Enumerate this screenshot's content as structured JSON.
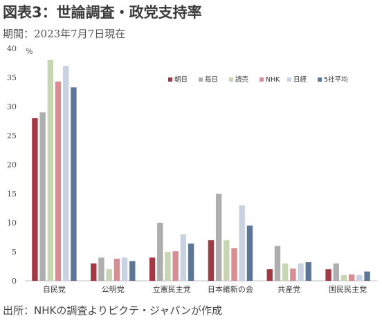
{
  "header": {
    "title": "図表3：世論調査・政党支持率",
    "subtitle": "期間：2023年7月7日現在"
  },
  "footer": {
    "source": "出所：NHKの調査よりピクテ・ジャパンが作成"
  },
  "chart_data": {
    "type": "bar",
    "title": "図表3：世論調査・政党支持率",
    "ylabel": "%",
    "xlabel": "",
    "ylim": [
      0,
      40
    ],
    "yticks": [
      0,
      5,
      10,
      15,
      20,
      25,
      30,
      35,
      40
    ],
    "grid": false,
    "legend_position": "top-right",
    "categories": [
      "自民党",
      "公明党",
      "立憲民主党",
      "日本維新の会",
      "共産党",
      "国民民主党"
    ],
    "series": [
      {
        "name": "朝日",
        "color": "#a23a45",
        "values": [
          28.0,
          3.0,
          4.0,
          7.0,
          2.0,
          2.0
        ]
      },
      {
        "name": "毎日",
        "color": "#aeaeae",
        "values": [
          29.0,
          4.0,
          10.0,
          15.0,
          6.0,
          3.0
        ]
      },
      {
        "name": "読売",
        "color": "#c8d5b3",
        "values": [
          38.0,
          2.0,
          5.0,
          7.0,
          3.0,
          1.0
        ]
      },
      {
        "name": "NHK",
        "color": "#d88d93",
        "values": [
          34.3,
          3.8,
          5.1,
          5.6,
          2.1,
          1.1
        ]
      },
      {
        "name": "日経",
        "color": "#c9d2e1",
        "values": [
          37.0,
          4.0,
          8.0,
          13.0,
          3.0,
          1.0
        ]
      },
      {
        "name": "5社平均",
        "color": "#5d7695",
        "values": [
          33.3,
          3.4,
          6.4,
          9.5,
          3.2,
          1.6
        ]
      }
    ]
  }
}
